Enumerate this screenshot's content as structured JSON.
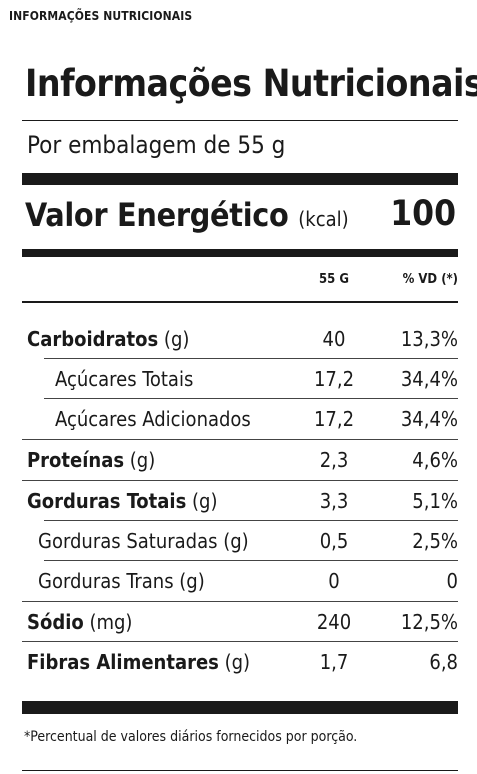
{
  "caption": "INFORMAÇÕES NUTRICIONAIS",
  "title": "Informações Nutricionais",
  "serving": "Por embalagem de 55 g",
  "energy": {
    "label": "Valor Energético",
    "unit": "(kcal)",
    "value": "100"
  },
  "columns": {
    "quantity": "55 G",
    "daily_value": "% VD (*)"
  },
  "rows": [
    {
      "name": "Carboidratos",
      "unit": "(g)",
      "quantity": "40",
      "daily_value": "13,3%"
    },
    {
      "name": "Açúcares Totais",
      "unit": "",
      "quantity": "17,2",
      "daily_value": "34,4%"
    },
    {
      "name": "Açúcares Adicionados",
      "unit": "",
      "quantity": "17,2",
      "daily_value": "34,4%"
    },
    {
      "name": "Proteínas",
      "unit": "(g)",
      "quantity": "2,3",
      "daily_value": "4,6%"
    },
    {
      "name": "Gorduras Totais",
      "unit": "(g)",
      "quantity": "3,3",
      "daily_value": "5,1%"
    },
    {
      "name": "Gorduras Saturadas (g)",
      "unit": "",
      "quantity": "0,5",
      "daily_value": "2,5%"
    },
    {
      "name": "Gorduras Trans (g)",
      "unit": "",
      "quantity": "0",
      "daily_value": "0"
    },
    {
      "name": "Sódio",
      "unit": "(mg)",
      "quantity": "240",
      "daily_value": "12,5%"
    },
    {
      "name": "Fibras Alimentares",
      "unit": "(g)",
      "quantity": "1,7",
      "daily_value": "6,8"
    }
  ],
  "footnote": "*Percentual de valores diários fornecidos por porção."
}
